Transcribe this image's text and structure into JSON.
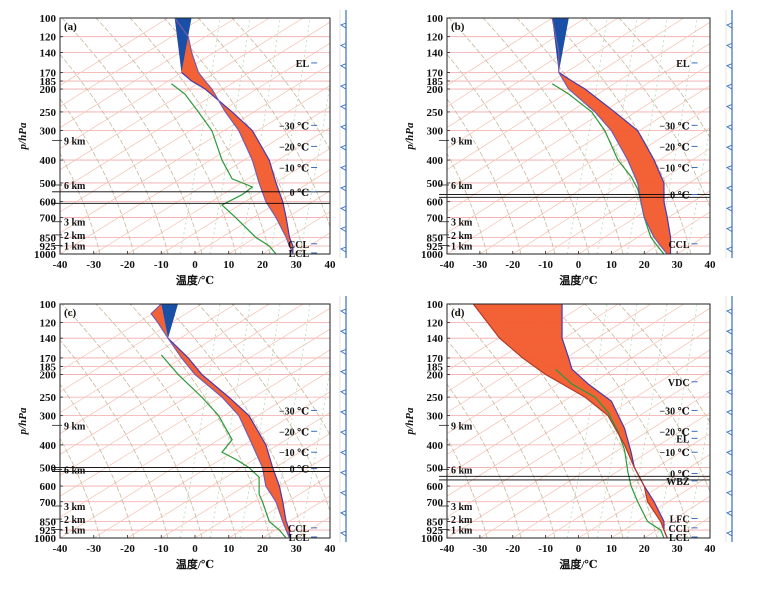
{
  "figure": {
    "xlabel": "温度/℃",
    "ylabel": "p/hPa"
  },
  "chart_data": [
    {
      "panel": "(a)",
      "type": "line",
      "ylabel": "p/hPa",
      "xlabel": "温度/℃",
      "xlim": [
        -40,
        40
      ],
      "ylim": [
        1000,
        100
      ],
      "yscale": "log",
      "yticks": [
        100,
        120,
        140,
        170,
        185,
        200,
        250,
        300,
        400,
        500,
        600,
        700,
        850,
        925,
        1000
      ],
      "xticks": [
        -40,
        -30,
        -20,
        -10,
        0,
        10,
        20,
        30,
        40
      ],
      "height_marks": [
        {
          "label": "9 km",
          "p": 330
        },
        {
          "label": "6 km",
          "p": 510
        },
        {
          "label": "3 km",
          "p": 730
        },
        {
          "label": "2 km",
          "p": 830
        },
        {
          "label": "1 km",
          "p": 920
        }
      ],
      "level_lines": [
        545,
        610
      ],
      "annotations": [
        {
          "label": "EL",
          "p": 155,
          "t": 35
        },
        {
          "label": "−30 ℃",
          "p": 285,
          "t": 35
        },
        {
          "label": "−20 ℃",
          "p": 350,
          "t": 35
        },
        {
          "label": "−10 ℃",
          "p": 430,
          "t": 35
        },
        {
          "label": "0 ℃",
          "p": 545,
          "t": 35
        },
        {
          "label": "CCL",
          "p": 905,
          "t": 35
        },
        {
          "label": "LCL",
          "p": 990,
          "t": 35
        }
      ],
      "series": [
        {
          "role": "temperature",
          "points": [
            [
              -6,
              100
            ],
            [
              -2,
              120
            ],
            [
              -1,
              140
            ],
            [
              1,
              170
            ],
            [
              3,
              185
            ],
            [
              5,
              200
            ],
            [
              9,
              250
            ],
            [
              13,
              300
            ],
            [
              17,
              400
            ],
            [
              19,
              500
            ],
            [
              21,
              600
            ],
            [
              24,
              700
            ],
            [
              27,
              850
            ],
            [
              28,
              925
            ],
            [
              29,
              1000
            ]
          ]
        },
        {
          "role": "dewpoint",
          "points": [
            [
              -7,
              190
            ],
            [
              -3,
              210
            ],
            [
              1,
              250
            ],
            [
              5,
              300
            ],
            [
              8,
              400
            ],
            [
              11,
              480
            ],
            [
              17,
              520
            ],
            [
              14,
              560
            ],
            [
              8,
              620
            ],
            [
              12,
              700
            ],
            [
              18,
              850
            ],
            [
              22,
              925
            ],
            [
              24,
              1000
            ]
          ]
        },
        {
          "role": "parcel",
          "points": [
            [
              -4,
              170
            ],
            [
              -1,
              185
            ],
            [
              3,
              200
            ],
            [
              11,
              250
            ],
            [
              17,
              300
            ],
            [
              22,
              400
            ],
            [
              24,
              500
            ],
            [
              26,
              600
            ],
            [
              27,
              700
            ],
            [
              28,
              850
            ],
            [
              29,
              925
            ],
            [
              29,
              1000
            ]
          ]
        }
      ]
    },
    {
      "panel": "(b)",
      "type": "line",
      "ylabel": "p/hPa",
      "xlabel": "温度/℃",
      "xlim": [
        -40,
        40
      ],
      "ylim": [
        1000,
        100
      ],
      "yscale": "log",
      "yticks": [
        100,
        120,
        140,
        170,
        185,
        200,
        250,
        300,
        400,
        500,
        600,
        700,
        850,
        925,
        1000
      ],
      "xticks": [
        -40,
        -30,
        -20,
        -10,
        0,
        10,
        20,
        30,
        40
      ],
      "height_marks": [
        {
          "label": "9 km",
          "p": 330
        },
        {
          "label": "6 km",
          "p": 510
        },
        {
          "label": "3 km",
          "p": 730
        },
        {
          "label": "2 km",
          "p": 830
        },
        {
          "label": "1 km",
          "p": 920
        }
      ],
      "level_lines": [
        560,
        575
      ],
      "annotations": [
        {
          "label": "EL",
          "p": 155,
          "t": 35
        },
        {
          "label": "−30 ℃",
          "p": 285,
          "t": 35
        },
        {
          "label": "−20 ℃",
          "p": 350,
          "t": 35
        },
        {
          "label": "−10 ℃",
          "p": 430,
          "t": 35
        },
        {
          "label": "0 ℃",
          "p": 560,
          "t": 35
        },
        {
          "label": "CCL",
          "p": 905,
          "t": 35
        }
      ],
      "series": [
        {
          "role": "temperature",
          "points": [
            [
              -8,
              100
            ],
            [
              -6,
              140
            ],
            [
              -6,
              170
            ],
            [
              -3,
              200
            ],
            [
              5,
              250
            ],
            [
              10,
              300
            ],
            [
              15,
              400
            ],
            [
              18,
              500
            ],
            [
              19,
              600
            ],
            [
              20,
              700
            ],
            [
              23,
              850
            ],
            [
              25,
              925
            ],
            [
              27,
              1000
            ]
          ]
        },
        {
          "role": "dewpoint",
          "points": [
            [
              -8,
              190
            ],
            [
              -3,
              210
            ],
            [
              4,
              250
            ],
            [
              8,
              300
            ],
            [
              12,
              400
            ],
            [
              16,
              470
            ],
            [
              18,
              530
            ],
            [
              19,
              600
            ],
            [
              20,
              700
            ],
            [
              22,
              850
            ],
            [
              24,
              925
            ],
            [
              26,
              1000
            ]
          ]
        },
        {
          "role": "parcel",
          "points": [
            [
              -6,
              170
            ],
            [
              -2,
              185
            ],
            [
              2,
              200
            ],
            [
              11,
              250
            ],
            [
              18,
              300
            ],
            [
              23,
              400
            ],
            [
              26,
              500
            ],
            [
              26,
              600
            ],
            [
              27,
              700
            ],
            [
              28,
              850
            ],
            [
              28,
              925
            ],
            [
              28,
              1000
            ]
          ]
        }
      ]
    },
    {
      "panel": "(c)",
      "type": "line",
      "ylabel": "p/hPa",
      "xlabel": "温度/℃",
      "xlim": [
        -40,
        40
      ],
      "ylim": [
        1000,
        100
      ],
      "yscale": "log",
      "yticks": [
        100,
        120,
        140,
        170,
        185,
        200,
        250,
        300,
        400,
        500,
        600,
        700,
        850,
        925,
        1000
      ],
      "xticks": [
        -40,
        -30,
        -20,
        -10,
        0,
        10,
        20,
        30,
        40
      ],
      "height_marks": [
        {
          "label": "9 km",
          "p": 330
        },
        {
          "label": "6 km",
          "p": 510
        },
        {
          "label": "3 km",
          "p": 730
        },
        {
          "label": "2 km",
          "p": 830
        },
        {
          "label": "1 km",
          "p": 920
        }
      ],
      "level_lines": [
        500,
        520
      ],
      "annotations": [
        {
          "label": "−30 ℃",
          "p": 285,
          "t": 35
        },
        {
          "label": "−20 ℃",
          "p": 350,
          "t": 35
        },
        {
          "label": "−10 ℃",
          "p": 430,
          "t": 35
        },
        {
          "label": "0 ℃",
          "p": 505,
          "t": 35
        },
        {
          "label": "CCL",
          "p": 905,
          "t": 35
        },
        {
          "label": "LCL",
          "p": 990,
          "t": 35
        }
      ],
      "series": [
        {
          "role": "temperature",
          "points": [
            [
              -10,
              100
            ],
            [
              -13,
              110
            ],
            [
              -11,
              120
            ],
            [
              -8,
              140
            ],
            [
              -4,
              170
            ],
            [
              0,
              200
            ],
            [
              8,
              250
            ],
            [
              13,
              300
            ],
            [
              17,
              400
            ],
            [
              20,
              500
            ],
            [
              21,
              600
            ],
            [
              24,
              700
            ],
            [
              26,
              850
            ],
            [
              27,
              925
            ],
            [
              28,
              1000
            ]
          ]
        },
        {
          "role": "dewpoint",
          "points": [
            [
              -10,
              165
            ],
            [
              -5,
              200
            ],
            [
              2,
              250
            ],
            [
              7,
              300
            ],
            [
              11,
              380
            ],
            [
              8,
              430
            ],
            [
              12,
              460
            ],
            [
              16,
              500
            ],
            [
              19,
              550
            ],
            [
              19,
              650
            ],
            [
              20,
              700
            ],
            [
              22,
              850
            ],
            [
              25,
              925
            ],
            [
              27,
              1000
            ]
          ]
        },
        {
          "role": "parcel",
          "points": [
            [
              -8,
              140
            ],
            [
              -2,
              170
            ],
            [
              2,
              200
            ],
            [
              10,
              250
            ],
            [
              16,
              300
            ],
            [
              21,
              400
            ],
            [
              23,
              500
            ],
            [
              25,
              600
            ],
            [
              26,
              700
            ],
            [
              27,
              850
            ],
            [
              28,
              925
            ],
            [
              28,
              1000
            ]
          ]
        }
      ]
    },
    {
      "panel": "(d)",
      "type": "line",
      "ylabel": "p/hPa",
      "xlabel": "温度/℃",
      "xlim": [
        -40,
        40
      ],
      "ylim": [
        1000,
        100
      ],
      "yscale": "log",
      "yticks": [
        100,
        120,
        140,
        170,
        185,
        200,
        250,
        300,
        400,
        500,
        600,
        700,
        850,
        925,
        1000
      ],
      "xticks": [
        -40,
        -30,
        -20,
        -10,
        0,
        10,
        20,
        30,
        40
      ],
      "height_marks": [
        {
          "label": "9 km",
          "p": 330
        },
        {
          "label": "6 km",
          "p": 510
        },
        {
          "label": "3 km",
          "p": 730
        },
        {
          "label": "2 km",
          "p": 830
        },
        {
          "label": "1 km",
          "p": 920
        }
      ],
      "level_lines": [
        545,
        565
      ],
      "annotations": [
        {
          "label": "VDC",
          "p": 215,
          "t": 35
        },
        {
          "label": "−30 ℃",
          "p": 285,
          "t": 35
        },
        {
          "label": "−20 ℃",
          "p": 350,
          "t": 35
        },
        {
          "label": "EL",
          "p": 375,
          "t": 35
        },
        {
          "label": "−10 ℃",
          "p": 430,
          "t": 35
        },
        {
          "label": "0 ℃",
          "p": 530,
          "t": 35
        },
        {
          "label": "WBZ",
          "p": 570,
          "t": 35
        },
        {
          "label": "LFC",
          "p": 825,
          "t": 35
        },
        {
          "label": "CCL",
          "p": 905,
          "t": 35
        },
        {
          "label": "LCL",
          "p": 990,
          "t": 35
        }
      ],
      "series": [
        {
          "role": "temperature",
          "points": [
            [
              -32,
              100
            ],
            [
              -24,
              140
            ],
            [
              -17,
              170
            ],
            [
              -10,
              200
            ],
            [
              2,
              250
            ],
            [
              9,
              300
            ],
            [
              14,
              400
            ],
            [
              17,
              500
            ],
            [
              20,
              600
            ],
            [
              21,
              700
            ],
            [
              25,
              850
            ],
            [
              26,
              925
            ],
            [
              27,
              1000
            ]
          ]
        },
        {
          "role": "dewpoint",
          "points": [
            [
              -7,
              190
            ],
            [
              -2,
              220
            ],
            [
              5,
              250
            ],
            [
              9,
              290
            ],
            [
              12,
              350
            ],
            [
              14,
              420
            ],
            [
              15,
              520
            ],
            [
              16,
              600
            ],
            [
              18,
              700
            ],
            [
              21,
              850
            ],
            [
              25,
              925
            ],
            [
              26,
              1000
            ]
          ]
        },
        {
          "role": "parcel",
          "points": [
            [
              -5,
              100
            ],
            [
              -5,
              140
            ],
            [
              -3,
              170
            ],
            [
              -2,
              190
            ],
            [
              3,
              220
            ],
            [
              10,
              260
            ],
            [
              14,
              340
            ],
            [
              16,
              430
            ],
            [
              17,
              500
            ],
            [
              20,
              600
            ],
            [
              23,
              700
            ],
            [
              26,
              850
            ],
            [
              26,
              925
            ],
            [
              27,
              1000
            ]
          ]
        }
      ]
    }
  ]
}
